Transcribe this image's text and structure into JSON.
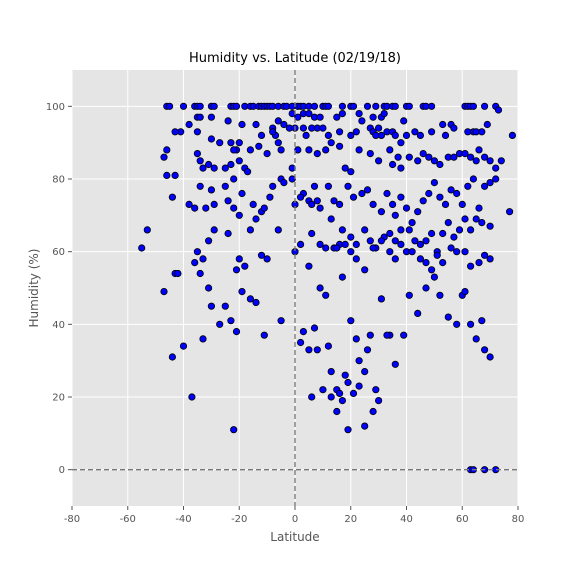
{
  "chart_data": {
    "type": "scatter",
    "title": "Humidity vs. Latitude (02/19/18)",
    "xlabel": "Latitude",
    "ylabel": "Humidity (%)",
    "xlim": [
      -80,
      80
    ],
    "ylim": [
      -10,
      110
    ],
    "xticks": [
      -80,
      -60,
      -40,
      -20,
      0,
      20,
      40,
      60,
      80
    ],
    "yticks": [
      0,
      20,
      40,
      60,
      80,
      100
    ],
    "grid": true,
    "legend": "none",
    "reference_lines": [
      {
        "orientation": "vertical",
        "value": 0,
        "style": "dashed"
      },
      {
        "orientation": "horizontal",
        "value": 0,
        "style": "dashed"
      }
    ],
    "colors": {
      "background": "#e5e5e5",
      "grid": "#ffffff",
      "marker_fill": "#0000ff",
      "marker_edge": "#000000",
      "reference": "#777777"
    },
    "points": [
      [
        -46,
        100
      ],
      [
        -45,
        100
      ],
      [
        -40,
        100
      ],
      [
        -36,
        100
      ],
      [
        -35,
        100
      ],
      [
        -34,
        100
      ],
      [
        -30,
        100
      ],
      [
        -29,
        100
      ],
      [
        -23,
        100
      ],
      [
        -22,
        100
      ],
      [
        -21,
        100
      ],
      [
        -18,
        100
      ],
      [
        -16,
        100
      ],
      [
        -15,
        100
      ],
      [
        -13,
        100
      ],
      [
        -12,
        100
      ],
      [
        -11,
        100
      ],
      [
        -10,
        100
      ],
      [
        -9,
        100
      ],
      [
        -8,
        100
      ],
      [
        -6,
        100
      ],
      [
        -4,
        100
      ],
      [
        -3,
        100
      ],
      [
        -1,
        100
      ],
      [
        1,
        100
      ],
      [
        2,
        100
      ],
      [
        3,
        100
      ],
      [
        5,
        100
      ],
      [
        7,
        100
      ],
      [
        10,
        100
      ],
      [
        11,
        100
      ],
      [
        12,
        100
      ],
      [
        17,
        100
      ],
      [
        20,
        100
      ],
      [
        21,
        100
      ],
      [
        26,
        100
      ],
      [
        29,
        100
      ],
      [
        32,
        100
      ],
      [
        33,
        100
      ],
      [
        35,
        100
      ],
      [
        36,
        100
      ],
      [
        40,
        100
      ],
      [
        41,
        100
      ],
      [
        46,
        100
      ],
      [
        47,
        100
      ],
      [
        49,
        100
      ],
      [
        61,
        100
      ],
      [
        62,
        100
      ],
      [
        63,
        100
      ],
      [
        64,
        100
      ],
      [
        68,
        100
      ],
      [
        72,
        100
      ],
      [
        -35,
        97
      ],
      [
        -34,
        97
      ],
      [
        -30,
        97
      ],
      [
        -24,
        96
      ],
      [
        -19,
        95
      ],
      [
        -6,
        96
      ],
      [
        -4,
        95
      ],
      [
        -1,
        98
      ],
      [
        1,
        97
      ],
      [
        3,
        98
      ],
      [
        5,
        98
      ],
      [
        7,
        97
      ],
      [
        9,
        97
      ],
      [
        15,
        97
      ],
      [
        17,
        98
      ],
      [
        23,
        98
      ],
      [
        24,
        96
      ],
      [
        28,
        97
      ],
      [
        31,
        97
      ],
      [
        32,
        98
      ],
      [
        39,
        96
      ],
      [
        53,
        95
      ],
      [
        56,
        95
      ],
      [
        73,
        99
      ],
      [
        -41,
        93
      ],
      [
        -38,
        95
      ],
      [
        -35,
        93
      ],
      [
        -30,
        91
      ],
      [
        -27,
        90
      ],
      [
        -23,
        90
      ],
      [
        -21,
        88
      ],
      [
        -20,
        90
      ],
      [
        -16,
        88
      ],
      [
        -14,
        95
      ],
      [
        -12,
        92
      ],
      [
        -8,
        94
      ],
      [
        -7,
        92
      ],
      [
        -6,
        90
      ],
      [
        -2,
        94
      ],
      [
        0,
        94
      ],
      [
        3,
        94
      ],
      [
        4,
        92
      ],
      [
        6,
        94
      ],
      [
        8,
        94
      ],
      [
        10,
        94
      ],
      [
        12,
        92
      ],
      [
        16,
        93
      ],
      [
        20,
        92
      ],
      [
        22,
        93
      ],
      [
        27,
        94
      ],
      [
        28,
        93
      ],
      [
        29,
        92
      ],
      [
        30,
        94
      ],
      [
        31,
        92
      ],
      [
        33,
        93
      ],
      [
        35,
        93
      ],
      [
        36,
        92
      ],
      [
        38,
        90
      ],
      [
        40,
        92
      ],
      [
        43,
        93
      ],
      [
        45,
        92
      ],
      [
        49,
        93
      ],
      [
        54,
        92
      ],
      [
        57,
        94
      ],
      [
        62,
        93
      ],
      [
        64,
        93
      ],
      [
        65,
        93
      ],
      [
        67,
        93
      ],
      [
        69,
        95
      ],
      [
        78,
        92
      ],
      [
        -43,
        93
      ],
      [
        -47,
        86
      ],
      [
        -46,
        88
      ],
      [
        -43,
        81
      ],
      [
        -35,
        87
      ],
      [
        -34,
        85
      ],
      [
        -33,
        83
      ],
      [
        -31,
        84
      ],
      [
        -29,
        83
      ],
      [
        -25,
        83
      ],
      [
        -23,
        84
      ],
      [
        -22,
        88
      ],
      [
        -20,
        85
      ],
      [
        -18,
        83
      ],
      [
        -13,
        89
      ],
      [
        -10,
        87
      ],
      [
        -8,
        93
      ],
      [
        -5,
        88
      ],
      [
        -1,
        83
      ],
      [
        1,
        88
      ],
      [
        5,
        88
      ],
      [
        8,
        87
      ],
      [
        11,
        88
      ],
      [
        13,
        90
      ],
      [
        16,
        89
      ],
      [
        18,
        83
      ],
      [
        20,
        82
      ],
      [
        23,
        88
      ],
      [
        27,
        87
      ],
      [
        30,
        85
      ],
      [
        34,
        88
      ],
      [
        35,
        84
      ],
      [
        37,
        86
      ],
      [
        38,
        83
      ],
      [
        41,
        86
      ],
      [
        44,
        85
      ],
      [
        46,
        87
      ],
      [
        48,
        86
      ],
      [
        50,
        85
      ],
      [
        52,
        84
      ],
      [
        55,
        86
      ],
      [
        57,
        86
      ],
      [
        59,
        87
      ],
      [
        61,
        87
      ],
      [
        63,
        86
      ],
      [
        65,
        85
      ],
      [
        66,
        88
      ],
      [
        68,
        86
      ],
      [
        70,
        85
      ],
      [
        72,
        83
      ],
      [
        74,
        85
      ],
      [
        -46,
        81
      ],
      [
        -44,
        75
      ],
      [
        -38,
        73
      ],
      [
        -36,
        72
      ],
      [
        -34,
        78
      ],
      [
        -32,
        72
      ],
      [
        -30,
        77
      ],
      [
        -29,
        73
      ],
      [
        -25,
        78
      ],
      [
        -22,
        80
      ],
      [
        -19,
        76
      ],
      [
        -17,
        82
      ],
      [
        -15,
        73
      ],
      [
        -12,
        71
      ],
      [
        -8,
        78
      ],
      [
        -5,
        80
      ],
      [
        -4,
        79
      ],
      [
        -1,
        80
      ],
      [
        3,
        76
      ],
      [
        5,
        74
      ],
      [
        7,
        78
      ],
      [
        9,
        72
      ],
      [
        12,
        78
      ],
      [
        14,
        74
      ],
      [
        16,
        73
      ],
      [
        19,
        78
      ],
      [
        21,
        75
      ],
      [
        24,
        76
      ],
      [
        26,
        77
      ],
      [
        28,
        73
      ],
      [
        31,
        71
      ],
      [
        33,
        76
      ],
      [
        35,
        73
      ],
      [
        36,
        70
      ],
      [
        38,
        75
      ],
      [
        40,
        72
      ],
      [
        42,
        68
      ],
      [
        44,
        71
      ],
      [
        46,
        74
      ],
      [
        48,
        76
      ],
      [
        50,
        79
      ],
      [
        52,
        75
      ],
      [
        54,
        73
      ],
      [
        56,
        77
      ],
      [
        58,
        76
      ],
      [
        60,
        73
      ],
      [
        62,
        78
      ],
      [
        64,
        80
      ],
      [
        66,
        72
      ],
      [
        68,
        78
      ],
      [
        70,
        79
      ],
      [
        72,
        80
      ],
      [
        77,
        71
      ],
      [
        -24,
        74
      ],
      [
        -22,
        72
      ],
      [
        -20,
        70
      ],
      [
        -14,
        69
      ],
      [
        -11,
        72
      ],
      [
        -6,
        66
      ],
      [
        0,
        73
      ],
      [
        2,
        75
      ],
      [
        6,
        73
      ],
      [
        8,
        74
      ],
      [
        13,
        69
      ],
      [
        17,
        66
      ],
      [
        20,
        64
      ],
      [
        22,
        62
      ],
      [
        25,
        66
      ],
      [
        27,
        63
      ],
      [
        29,
        61
      ],
      [
        32,
        64
      ],
      [
        34,
        65
      ],
      [
        36,
        63
      ],
      [
        38,
        66
      ],
      [
        41,
        66
      ],
      [
        43,
        63
      ],
      [
        45,
        62
      ],
      [
        47,
        63
      ],
      [
        49,
        65
      ],
      [
        51,
        60
      ],
      [
        53,
        65
      ],
      [
        55,
        68
      ],
      [
        57,
        64
      ],
      [
        59,
        66
      ],
      [
        61,
        69
      ],
      [
        63,
        66
      ],
      [
        65,
        69
      ],
      [
        67,
        68
      ],
      [
        70,
        67
      ],
      [
        -35,
        60
      ],
      [
        -33,
        58
      ],
      [
        -31,
        63
      ],
      [
        -24,
        65
      ],
      [
        -20,
        58
      ],
      [
        -18,
        56
      ],
      [
        -12,
        59
      ],
      [
        0,
        60
      ],
      [
        2,
        62
      ],
      [
        5,
        56
      ],
      [
        9,
        62
      ],
      [
        11,
        61
      ],
      [
        14,
        61
      ],
      [
        16,
        62
      ],
      [
        18,
        62
      ],
      [
        20,
        60
      ],
      [
        22,
        58
      ],
      [
        25,
        55
      ],
      [
        28,
        61
      ],
      [
        31,
        63
      ],
      [
        34,
        60
      ],
      [
        36,
        58
      ],
      [
        38,
        62
      ],
      [
        40,
        60
      ],
      [
        42,
        60
      ],
      [
        45,
        58
      ],
      [
        47,
        57
      ],
      [
        49,
        55
      ],
      [
        51,
        59
      ],
      [
        53,
        57
      ],
      [
        56,
        61
      ],
      [
        58,
        60
      ],
      [
        61,
        60
      ],
      [
        63,
        56
      ],
      [
        66,
        57
      ],
      [
        68,
        59
      ],
      [
        70,
        58
      ],
      [
        -55,
        61
      ],
      [
        -53,
        66
      ],
      [
        -47,
        49
      ],
      [
        -40,
        34
      ],
      [
        -37,
        20
      ],
      [
        -33,
        36
      ],
      [
        -31,
        50
      ],
      [
        -27,
        40
      ],
      [
        -25,
        45
      ],
      [
        -23,
        41
      ],
      [
        -22,
        11
      ],
      [
        -21,
        38
      ],
      [
        -16,
        47
      ],
      [
        -11,
        37
      ],
      [
        -10,
        58
      ],
      [
        -5,
        41
      ],
      [
        2,
        35
      ],
      [
        3,
        38
      ],
      [
        5,
        33
      ],
      [
        7,
        39
      ],
      [
        9,
        50
      ],
      [
        11,
        48
      ],
      [
        12,
        34
      ],
      [
        13,
        27
      ],
      [
        15,
        22
      ],
      [
        16,
        21
      ],
      [
        17,
        19
      ],
      [
        19,
        24
      ],
      [
        20,
        41
      ],
      [
        22,
        36
      ],
      [
        23,
        30
      ],
      [
        25,
        27
      ],
      [
        26,
        33
      ],
      [
        28,
        16
      ],
      [
        29,
        22
      ],
      [
        30,
        19
      ],
      [
        31,
        47
      ],
      [
        34,
        37
      ],
      [
        36,
        29
      ],
      [
        39,
        37
      ],
      [
        41,
        48
      ],
      [
        44,
        43
      ],
      [
        47,
        50
      ],
      [
        50,
        53
      ],
      [
        52,
        48
      ],
      [
        55,
        42
      ],
      [
        58,
        40
      ],
      [
        60,
        48
      ],
      [
        61,
        49
      ],
      [
        63,
        40
      ],
      [
        65,
        36
      ],
      [
        67,
        41
      ],
      [
        68,
        33
      ],
      [
        70,
        31
      ],
      [
        -44,
        31
      ],
      [
        -43,
        54
      ],
      [
        -42,
        54
      ],
      [
        -34,
        54
      ],
      [
        -30,
        45
      ],
      [
        -21,
        55
      ],
      [
        -19,
        49
      ],
      [
        -14,
        46
      ],
      [
        6,
        20
      ],
      [
        8,
        33
      ],
      [
        10,
        22
      ],
      [
        13,
        20
      ],
      [
        15,
        16
      ],
      [
        18,
        26
      ],
      [
        19,
        11
      ],
      [
        21,
        21
      ],
      [
        23,
        23
      ],
      [
        25,
        12
      ],
      [
        27,
        37
      ],
      [
        33,
        37
      ],
      [
        63,
        0
      ],
      [
        64,
        0
      ],
      [
        68,
        0
      ],
      [
        72,
        0
      ],
      [
        -36,
        57
      ],
      [
        -29,
        66
      ],
      [
        -16,
        66
      ],
      [
        -9,
        75
      ],
      [
        6,
        65
      ],
      [
        15,
        61
      ],
      [
        17,
        53
      ]
    ]
  }
}
